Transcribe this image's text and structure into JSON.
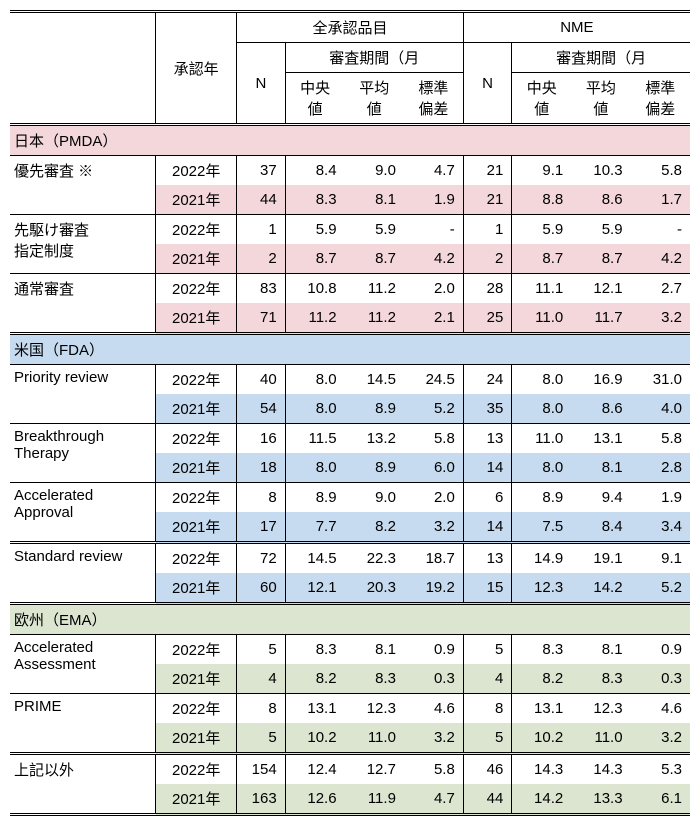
{
  "header": {
    "col_approval_year": "承認年",
    "group_all": "全承認品目",
    "group_nme": "NME",
    "col_review_period": "審査期間（月",
    "col_n": "N",
    "col_median_1": "中央",
    "col_median_2": "値",
    "col_mean_1": "平均",
    "col_mean_2": "値",
    "col_sd_1": "標準",
    "col_sd_2": "偏差"
  },
  "sections": {
    "japan": "日本（PMDA）",
    "us": "米国（FDA）",
    "eu": "欧州（EMA）"
  },
  "labels": {
    "jp_priority": "優先審査 ※",
    "jp_sakigake_1": "先駆け審査",
    "jp_sakigake_2": "指定制度",
    "jp_standard": "通常審査",
    "us_priority": "Priority review",
    "us_breakthrough_1": "Breakthrough",
    "us_breakthrough_2": "Therapy",
    "us_accelerated_1": "Accelerated",
    "us_accelerated_2": "Approval",
    "us_standard": "Standard review",
    "eu_accelerated_1": "Accelerated",
    "eu_accelerated_2": "Assessment",
    "eu_prime": "PRIME",
    "eu_other": "上記以外"
  },
  "years": {
    "y2022": "2022年",
    "y2021": "2021年"
  },
  "data": {
    "jp_priority_2022": {
      "all_n": "37",
      "all_med": "8.4",
      "all_mean": "9.0",
      "all_sd": "4.7",
      "nme_n": "21",
      "nme_med": "9.1",
      "nme_mean": "10.3",
      "nme_sd": "5.8"
    },
    "jp_priority_2021": {
      "all_n": "44",
      "all_med": "8.3",
      "all_mean": "8.1",
      "all_sd": "1.9",
      "nme_n": "21",
      "nme_med": "8.8",
      "nme_mean": "8.6",
      "nme_sd": "1.7"
    },
    "jp_sakigake_2022": {
      "all_n": "1",
      "all_med": "5.9",
      "all_mean": "5.9",
      "all_sd": "-",
      "nme_n": "1",
      "nme_med": "5.9",
      "nme_mean": "5.9",
      "nme_sd": "-"
    },
    "jp_sakigake_2021": {
      "all_n": "2",
      "all_med": "8.7",
      "all_mean": "8.7",
      "all_sd": "4.2",
      "nme_n": "2",
      "nme_med": "8.7",
      "nme_mean": "8.7",
      "nme_sd": "4.2"
    },
    "jp_standard_2022": {
      "all_n": "83",
      "all_med": "10.8",
      "all_mean": "11.2",
      "all_sd": "2.0",
      "nme_n": "28",
      "nme_med": "11.1",
      "nme_mean": "12.1",
      "nme_sd": "2.7"
    },
    "jp_standard_2021": {
      "all_n": "71",
      "all_med": "11.2",
      "all_mean": "11.2",
      "all_sd": "2.1",
      "nme_n": "25",
      "nme_med": "11.0",
      "nme_mean": "11.7",
      "nme_sd": "3.2"
    },
    "us_priority_2022": {
      "all_n": "40",
      "all_med": "8.0",
      "all_mean": "14.5",
      "all_sd": "24.5",
      "nme_n": "24",
      "nme_med": "8.0",
      "nme_mean": "16.9",
      "nme_sd": "31.0"
    },
    "us_priority_2021": {
      "all_n": "54",
      "all_med": "8.0",
      "all_mean": "8.9",
      "all_sd": "5.2",
      "nme_n": "35",
      "nme_med": "8.0",
      "nme_mean": "8.6",
      "nme_sd": "4.0"
    },
    "us_breakthrough_2022": {
      "all_n": "16",
      "all_med": "11.5",
      "all_mean": "13.2",
      "all_sd": "5.8",
      "nme_n": "13",
      "nme_med": "11.0",
      "nme_mean": "13.1",
      "nme_sd": "5.8"
    },
    "us_breakthrough_2021": {
      "all_n": "18",
      "all_med": "8.0",
      "all_mean": "8.9",
      "all_sd": "6.0",
      "nme_n": "14",
      "nme_med": "8.0",
      "nme_mean": "8.1",
      "nme_sd": "2.8"
    },
    "us_accelerated_2022": {
      "all_n": "8",
      "all_med": "8.9",
      "all_mean": "9.0",
      "all_sd": "2.0",
      "nme_n": "6",
      "nme_med": "8.9",
      "nme_mean": "9.4",
      "nme_sd": "1.9"
    },
    "us_accelerated_2021": {
      "all_n": "17",
      "all_med": "7.7",
      "all_mean": "8.2",
      "all_sd": "3.2",
      "nme_n": "14",
      "nme_med": "7.5",
      "nme_mean": "8.4",
      "nme_sd": "3.4"
    },
    "us_standard_2022": {
      "all_n": "72",
      "all_med": "14.5",
      "all_mean": "22.3",
      "all_sd": "18.7",
      "nme_n": "13",
      "nme_med": "14.9",
      "nme_mean": "19.1",
      "nme_sd": "9.1"
    },
    "us_standard_2021": {
      "all_n": "60",
      "all_med": "12.1",
      "all_mean": "20.3",
      "all_sd": "19.2",
      "nme_n": "15",
      "nme_med": "12.3",
      "nme_mean": "14.2",
      "nme_sd": "5.2"
    },
    "eu_accelerated_2022": {
      "all_n": "5",
      "all_med": "8.3",
      "all_mean": "8.1",
      "all_sd": "0.9",
      "nme_n": "5",
      "nme_med": "8.3",
      "nme_mean": "8.1",
      "nme_sd": "0.9"
    },
    "eu_accelerated_2021": {
      "all_n": "4",
      "all_med": "8.2",
      "all_mean": "8.3",
      "all_sd": "0.3",
      "nme_n": "4",
      "nme_med": "8.2",
      "nme_mean": "8.3",
      "nme_sd": "0.3"
    },
    "eu_prime_2022": {
      "all_n": "8",
      "all_med": "13.1",
      "all_mean": "12.3",
      "all_sd": "4.6",
      "nme_n": "8",
      "nme_med": "13.1",
      "nme_mean": "12.3",
      "nme_sd": "4.6"
    },
    "eu_prime_2021": {
      "all_n": "5",
      "all_med": "10.2",
      "all_mean": "11.0",
      "all_sd": "3.2",
      "nme_n": "5",
      "nme_med": "10.2",
      "nme_mean": "11.0",
      "nme_sd": "3.2"
    },
    "eu_other_2022": {
      "all_n": "154",
      "all_med": "12.4",
      "all_mean": "12.7",
      "all_sd": "5.8",
      "nme_n": "46",
      "nme_med": "14.3",
      "nme_mean": "14.3",
      "nme_sd": "5.3"
    },
    "eu_other_2021": {
      "all_n": "163",
      "all_med": "12.6",
      "all_mean": "11.9",
      "all_sd": "4.7",
      "nme_n": "44",
      "nme_med": "14.2",
      "nme_mean": "13.3",
      "nme_sd": "6.1"
    }
  }
}
